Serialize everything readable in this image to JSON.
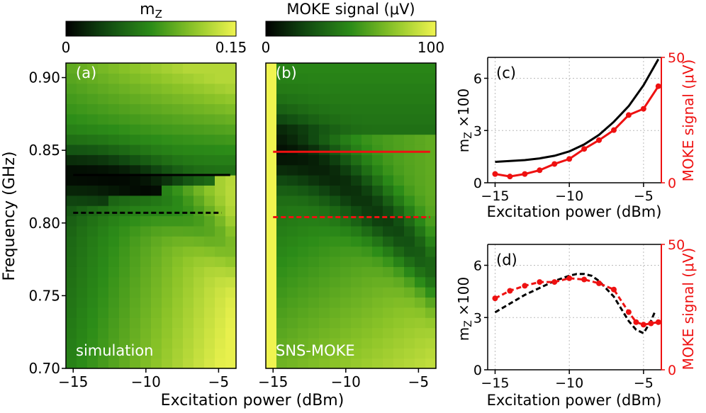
{
  "chart_data": [
    {
      "id": "a",
      "type": "heatmap",
      "panel_label": "(a)",
      "annotation": "simulation",
      "colorbar": {
        "title": "m",
        "title_sub": "Z",
        "min_label": "0",
        "max_label": "0.15",
        "range": [
          0,
          0.15
        ]
      },
      "x": [
        -15,
        -14,
        -13,
        -12,
        -11,
        -10,
        -9,
        -8,
        -7,
        -6,
        -5,
        -4
      ],
      "y": [
        0.7,
        0.71,
        0.72,
        0.73,
        0.74,
        0.75,
        0.76,
        0.77,
        0.78,
        0.79,
        0.8,
        0.81,
        0.82,
        0.83,
        0.84,
        0.85,
        0.86,
        0.87,
        0.88,
        0.89,
        0.9
      ],
      "xlim": [
        -15.5,
        -3.8
      ],
      "ylim": [
        0.7,
        0.91
      ],
      "xticks": [
        -15,
        -10,
        -5
      ],
      "xtick_labels": [
        "−15",
        "−10",
        "−5"
      ],
      "yticks": [
        0.7,
        0.75,
        0.8,
        0.85,
        0.9
      ],
      "ytick_labels": [
        "0.70",
        "0.75",
        "0.80",
        "0.85",
        "0.90"
      ],
      "ylabel": "Frequency (GHz)",
      "lines": [
        {
          "name": "solid",
          "x": [
            -15,
            -4.2
          ],
          "y": [
            0.833,
            0.833
          ],
          "color": "#000000",
          "dash": false
        },
        {
          "name": "dashed",
          "x": [
            -15,
            -4.8
          ],
          "y": [
            0.807,
            0.807
          ],
          "color": "#000000",
          "dash": true
        }
      ]
    },
    {
      "id": "b",
      "type": "heatmap",
      "panel_label": "(b)",
      "annotation": "SNS-MOKE",
      "colorbar": {
        "title": "MOKE signal (μV)",
        "min_label": "0",
        "max_label": "100",
        "range": [
          0,
          100
        ]
      },
      "x": [
        -15,
        -14,
        -13,
        -12,
        -11,
        -10,
        -9,
        -8,
        -7,
        -6,
        -5,
        -4
      ],
      "y": [
        0.7,
        0.71,
        0.72,
        0.73,
        0.74,
        0.75,
        0.76,
        0.77,
        0.78,
        0.79,
        0.8,
        0.81,
        0.82,
        0.83,
        0.84,
        0.85,
        0.86,
        0.87,
        0.88,
        0.89,
        0.9
      ],
      "xlim": [
        -15.5,
        -3.8
      ],
      "ylim": [
        0.7,
        0.91
      ],
      "xticks": [
        -15,
        -10,
        -5
      ],
      "xtick_labels": [
        "−15",
        "−10",
        "−5"
      ],
      "xlabel": "Excitation power (dBm)",
      "lines": [
        {
          "name": "solid",
          "x": [
            -15,
            -4.2
          ],
          "y": [
            0.849,
            0.849
          ],
          "color": "#ee1111",
          "dash": false
        },
        {
          "name": "dashed",
          "x": [
            -15,
            -4.2
          ],
          "y": [
            0.804,
            0.804
          ],
          "color": "#ee1111",
          "dash": true
        }
      ]
    },
    {
      "id": "c",
      "type": "line",
      "panel_label": "(c)",
      "xlabel": "Excitation power (dBm)",
      "ylabel": "m",
      "ylabel_sub": "Z",
      "ylabel_suffix": " ×100",
      "y2label": "MOKE signal (μV)",
      "xlim": [
        -15.5,
        -3.8
      ],
      "ylim": [
        0,
        7.2
      ],
      "y2lim": [
        0,
        50
      ],
      "xticks": [
        -15,
        -10,
        -5
      ],
      "xtick_labels": [
        "−15",
        "−10",
        "−5"
      ],
      "yticks": [
        0,
        3,
        6
      ],
      "ytick_labels": [
        "0",
        "3",
        "6"
      ],
      "y2ticks": [
        0,
        50
      ],
      "y2tick_labels": [
        "0",
        "50"
      ],
      "series": [
        {
          "name": "mz x100 (simulation)",
          "axis": "left",
          "color": "#000000",
          "dash": false,
          "markers": false,
          "x": [
            -15,
            -14,
            -13,
            -12,
            -11,
            -10,
            -9,
            -8,
            -7,
            -6,
            -5,
            -4
          ],
          "y": [
            1.2,
            1.25,
            1.3,
            1.4,
            1.55,
            1.8,
            2.2,
            2.75,
            3.5,
            4.4,
            5.6,
            7.1
          ]
        },
        {
          "name": "MOKE signal",
          "axis": "right",
          "color": "#ee1111",
          "dash": false,
          "markers": true,
          "x": [
            -15,
            -14,
            -13,
            -12,
            -11,
            -10,
            -9,
            -8,
            -7,
            -6,
            -5,
            -4
          ],
          "y": [
            3.5,
            2.5,
            3.5,
            5.0,
            7.5,
            9.5,
            13.5,
            17.0,
            21.0,
            27.0,
            29.5,
            38.5
          ]
        }
      ]
    },
    {
      "id": "d",
      "type": "line",
      "panel_label": "(d)",
      "xlabel": "Excitation power (dBm)",
      "ylabel": "m",
      "ylabel_sub": "Z",
      "ylabel_suffix": " ×100",
      "y2label": "MOKE signal (μV)",
      "xlim": [
        -15.5,
        -3.8
      ],
      "ylim": [
        0,
        7.2
      ],
      "y2lim": [
        0,
        50
      ],
      "xticks": [
        -15,
        -10,
        -5
      ],
      "xtick_labels": [
        "−15",
        "−10",
        "−5"
      ],
      "yticks": [
        0,
        3,
        6
      ],
      "ytick_labels": [
        "0",
        "3",
        "6"
      ],
      "y2ticks": [
        0,
        50
      ],
      "y2tick_labels": [
        "0",
        "50"
      ],
      "series": [
        {
          "name": "mz x100 (simulation)",
          "axis": "left",
          "color": "#000000",
          "dash": true,
          "markers": false,
          "x": [
            -15,
            -14,
            -13,
            -12,
            -11,
            -10,
            -9.5,
            -9,
            -8.5,
            -8,
            -7,
            -6,
            -5.5,
            -5,
            -4.5,
            -4.2
          ],
          "y": [
            3.3,
            3.8,
            4.3,
            4.7,
            5.1,
            5.4,
            5.5,
            5.5,
            5.4,
            5.1,
            4.2,
            2.8,
            2.3,
            2.1,
            2.8,
            3.4
          ]
        },
        {
          "name": "MOKE signal",
          "axis": "right",
          "color": "#ee1111",
          "dash": true,
          "markers": true,
          "x": [
            -15,
            -14,
            -13,
            -12,
            -11,
            -10,
            -9,
            -8,
            -7,
            -6,
            -5.5,
            -5,
            -4.5,
            -4
          ],
          "y": [
            28.5,
            31.5,
            33.5,
            35.0,
            35.0,
            36.5,
            36.0,
            34.5,
            32.0,
            23.0,
            19.0,
            18.0,
            18.5,
            19.0
          ]
        }
      ]
    }
  ]
}
